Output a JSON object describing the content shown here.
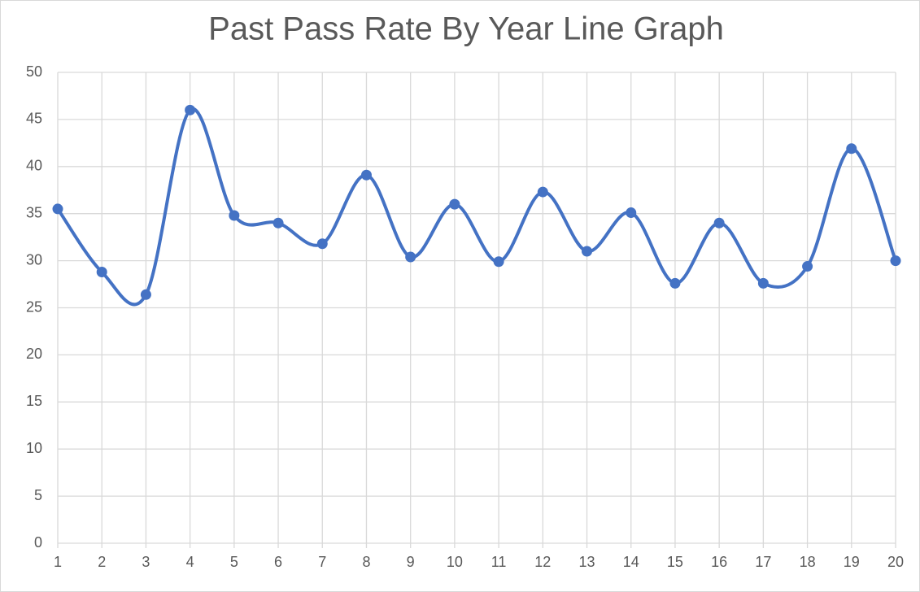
{
  "chart_data": {
    "type": "line",
    "title": "Past Pass Rate By Year Line Graph",
    "x": [
      1,
      2,
      3,
      4,
      5,
      6,
      7,
      8,
      9,
      10,
      11,
      12,
      13,
      14,
      15,
      16,
      17,
      18,
      19,
      20
    ],
    "series": [
      {
        "color": "#4472c4",
        "values": [
          35.5,
          28.8,
          26.4,
          46.0,
          34.8,
          34.0,
          31.8,
          39.1,
          30.4,
          36.0,
          29.9,
          37.3,
          31.0,
          35.1,
          27.6,
          34.0,
          27.6,
          29.4,
          41.9,
          30.0
        ]
      }
    ],
    "xlim": [
      1,
      20
    ],
    "xticks": [
      1,
      2,
      3,
      4,
      5,
      6,
      7,
      8,
      9,
      10,
      11,
      12,
      13,
      14,
      15,
      16,
      17,
      18,
      19,
      20
    ],
    "ylim": [
      0,
      50
    ],
    "yticks": [
      0,
      5,
      10,
      15,
      20,
      25,
      30,
      35,
      40,
      45,
      50
    ],
    "grid": true,
    "smooth": true
  }
}
